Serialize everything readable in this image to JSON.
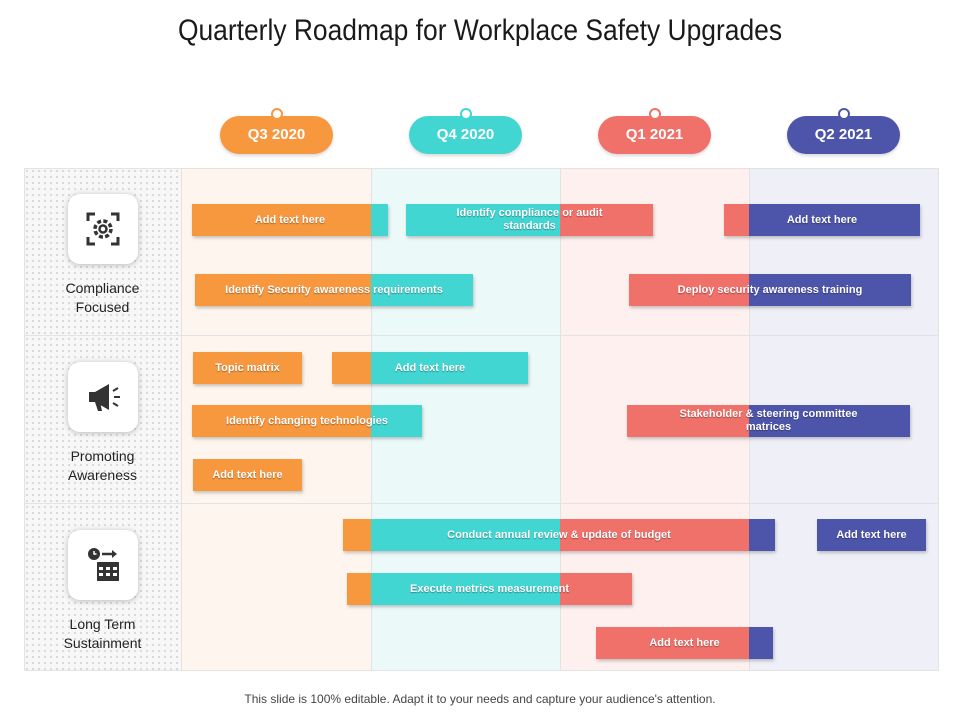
{
  "title": "Quarterly Roadmap for Workplace Safety Upgrades",
  "footer": "This slide is 100% editable. Adapt it to your needs and capture your audience's attention.",
  "colors": {
    "q3": "#f7983f",
    "q4": "#42d6d3",
    "q1": "#f0706a",
    "q2": "#4d55aa"
  },
  "quarters": [
    {
      "label": "Q3 2020",
      "color": "#f7983f"
    },
    {
      "label": "Q4 2020",
      "color": "#42d6d3"
    },
    {
      "label": "Q1 2021",
      "color": "#f0706a"
    },
    {
      "label": "Q2 2021",
      "color": "#4d55aa"
    }
  ],
  "rows": [
    {
      "label_line1": "Compliance",
      "label_line2": "Focused",
      "icon": "gear-focus-icon"
    },
    {
      "label_line1": "Promoting",
      "label_line2": "Awareness",
      "icon": "megaphone-icon"
    },
    {
      "label_line1": "Long Term",
      "label_line2": "Sustainment",
      "icon": "clock-calendar-icon"
    }
  ],
  "tasks": {
    "r1_t1": "Add text here",
    "r1_t2": "Identify compliance or audit standards",
    "r1_t3": "Add text here",
    "r1_t4": "Identify Security awareness requirements",
    "r1_t5": "Deploy security awareness training",
    "r2_t1": "Topic matrix",
    "r2_t2": "Add text here",
    "r2_t3": "Identify changing technologies",
    "r2_t4": "Stakeholder & steering committee matrices",
    "r2_t5": "Add text here",
    "r3_t1": "Conduct annual review & update of budget",
    "r3_t2": "Add text here",
    "r3_t3": "Execute metrics measurement",
    "r3_t4": "Add text here"
  }
}
